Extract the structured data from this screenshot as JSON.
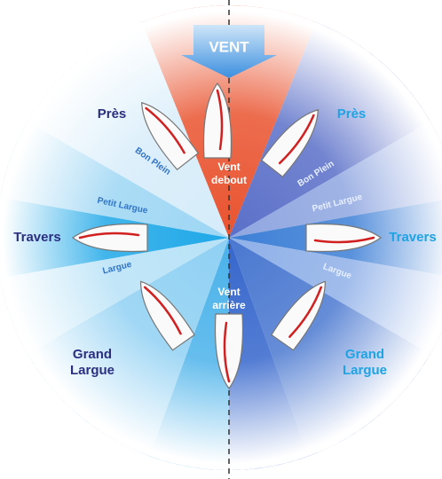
{
  "wind": {
    "label": "VENT"
  },
  "center": {
    "top": [
      "Vent",
      "debout"
    ],
    "bottom": [
      "Vent",
      "arrière"
    ]
  },
  "left": {
    "close_hauled": "Près",
    "close_reach": "Bon Plein",
    "broad_reach_small": "Petit Largue",
    "beam_reach": "Travers",
    "reach": "Largue",
    "broad_reach": [
      "Grand",
      "Largue"
    ]
  },
  "right": {
    "close_hauled": "Près",
    "close_reach": "Bon Plein",
    "broad_reach_small": "Petit Largue",
    "beam_reach": "Travers",
    "reach": "Largue",
    "broad_reach": [
      "Grand",
      "Largue"
    ]
  }
}
